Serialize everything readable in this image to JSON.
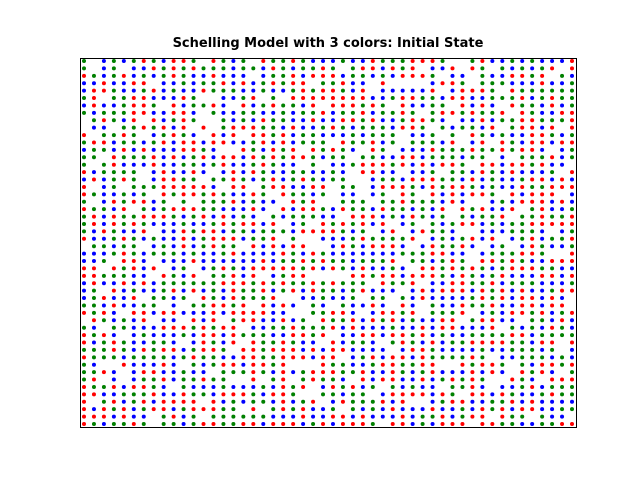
{
  "chart_data": {
    "type": "scatter",
    "title": "Schelling Model with 3 colors: Initial State",
    "xlabel": "",
    "ylabel": "",
    "grid": false,
    "axes_visible": false,
    "xlim": [
      0,
      50
    ],
    "ylim": [
      0,
      50
    ],
    "grid_size": [
      50,
      50
    ],
    "occupancy_note_free": 0.1,
    "series": [
      {
        "color": "#ff0000",
        "seed": 11,
        "share": 0.3
      },
      {
        "color": "#008000",
        "seed": 29,
        "share": 0.3
      },
      {
        "color": "#0000ff",
        "seed": 47,
        "share": 0.3
      }
    ]
  },
  "colors": {
    "background": "#ffffff",
    "axes_frame": "#000000"
  }
}
